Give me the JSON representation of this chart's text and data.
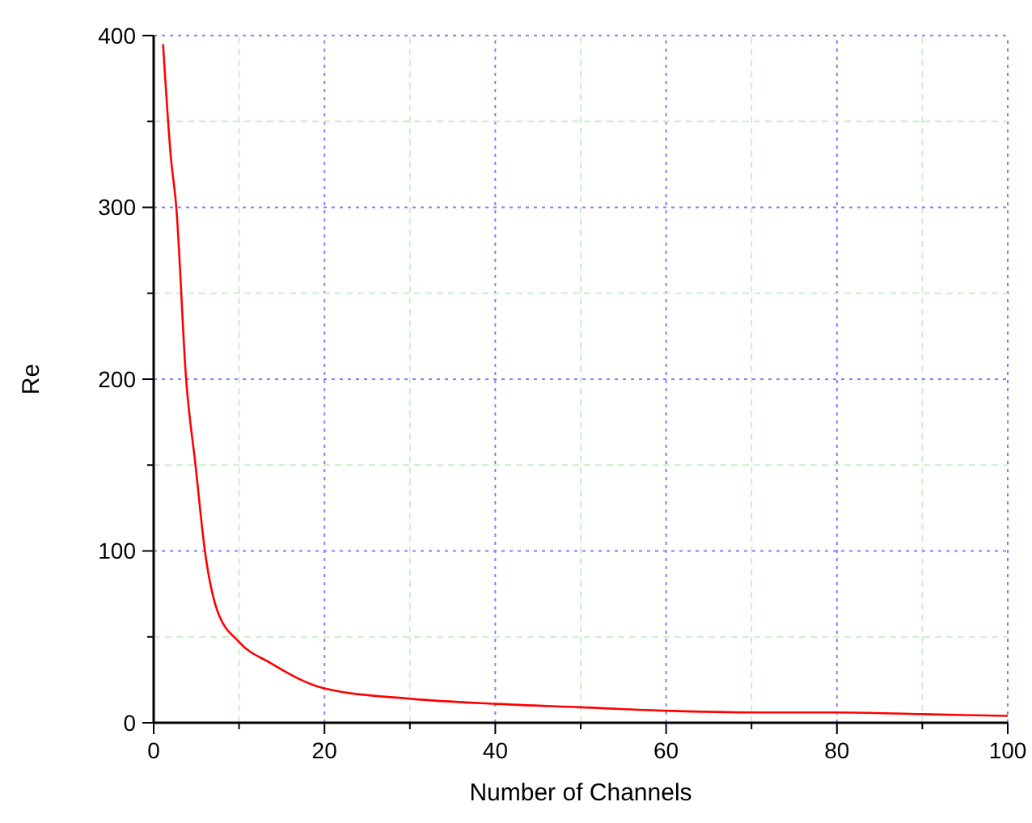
{
  "chart_data": {
    "type": "line",
    "xlabel": "Number of Channels",
    "ylabel": "Re",
    "x": [
      1.1,
      2,
      2.65,
      3.8,
      4.9,
      6,
      7.4,
      10,
      13.6,
      20,
      30,
      40,
      50,
      60,
      70,
      80,
      90,
      100
    ],
    "series": [
      {
        "color": "#ff0000",
        "values": [
          395,
          330,
          300,
          200,
          150,
          100,
          66,
          47,
          35,
          20,
          14,
          11,
          9,
          7,
          6,
          6,
          5,
          4
        ]
      }
    ],
    "xlim": [
      0,
      100
    ],
    "ylim": [
      0,
      400
    ],
    "xticks": [
      0,
      {
        "value": 10,
        "label": null
      },
      20,
      {
        "value": 30,
        "label": null
      },
      40,
      {
        "value": 50,
        "label": null
      },
      60,
      {
        "value": 70,
        "label": null
      },
      80,
      {
        "value": 90,
        "label": null
      },
      100
    ],
    "yticks": [
      0,
      {
        "value": 50,
        "label": null
      },
      100,
      {
        "value": 150,
        "label": null
      },
      200,
      {
        "value": 250,
        "label": null
      },
      300,
      {
        "value": 350,
        "label": null
      },
      400
    ],
    "grid": true,
    "marker": "none",
    "line_style": "solid"
  }
}
